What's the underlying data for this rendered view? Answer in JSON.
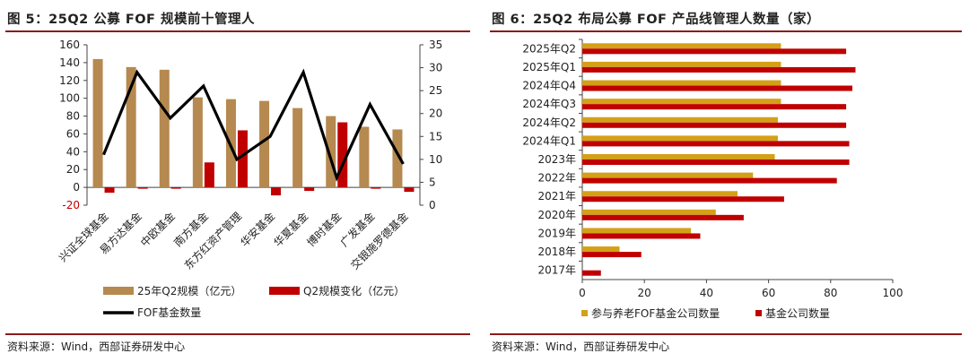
{
  "left_panel": {
    "title": "图 5：25Q2 公募 FOF 规模前十管理人",
    "source": "资料来源：Wind，西部证券研发中心"
  },
  "right_panel": {
    "title": "图 6：25Q2 布局公募 FOF 产品线管理人数量（家）",
    "source": "资料来源：Wind，西部证券研发中心"
  },
  "chart_data": [
    {
      "type": "bar",
      "categories": [
        "兴证全球基金",
        "易方达基金",
        "中欧基金",
        "南方基金",
        "东方红资产管理",
        "华安基金",
        "华夏基金",
        "博时基金",
        "广发基金",
        "交银施罗德基金"
      ],
      "series": [
        {
          "name": "25年Q2规模（亿元）",
          "axis": "left",
          "type": "bar",
          "color": "#b5894f",
          "values": [
            144,
            135,
            132,
            101,
            99,
            97,
            89,
            80,
            68,
            65
          ]
        },
        {
          "name": "Q2规模变化（亿元）",
          "axis": "left",
          "type": "bar",
          "color": "#c00000",
          "values": [
            -6,
            0,
            -1,
            28,
            64,
            -9,
            -4,
            73,
            0,
            -5
          ]
        },
        {
          "name": "FOF基金数量",
          "axis": "right",
          "type": "line",
          "color": "#000000",
          "values": [
            11,
            29,
            19,
            26,
            10,
            15,
            29,
            6,
            22,
            9
          ]
        }
      ],
      "y_left_ticks": [
        "-20",
        "0",
        "20",
        "40",
        "60",
        "80",
        "100",
        "120",
        "140",
        "160"
      ],
      "y_right_ticks": [
        "0",
        "5",
        "10",
        "15",
        "20",
        "25",
        "30",
        "35"
      ],
      "ylim_left": [
        -20,
        160
      ],
      "ylim_right": [
        0,
        35
      ],
      "legend": [
        "25年Q2规模（亿元）",
        "Q2规模变化（亿元）",
        "FOF基金数量"
      ]
    },
    {
      "type": "bar",
      "orientation": "horizontal",
      "categories": [
        "2025年Q2",
        "2025年Q1",
        "2024年Q4",
        "2024年Q3",
        "2024年Q2",
        "2024年Q1",
        "2023年",
        "2022年",
        "2021年",
        "2020年",
        "2019年",
        "2018年",
        "2017年"
      ],
      "series": [
        {
          "name": "参与养老FOF基金公司数量",
          "color": "#d4a017",
          "values": [
            64,
            64,
            64,
            64,
            63,
            63,
            62,
            55,
            50,
            43,
            35,
            12,
            0
          ]
        },
        {
          "name": "基金公司数量",
          "color": "#c00000",
          "values": [
            85,
            88,
            87,
            85,
            85,
            86,
            86,
            82,
            65,
            52,
            38,
            19,
            6
          ]
        }
      ],
      "x_ticks": [
        "0",
        "20",
        "40",
        "60",
        "80",
        "100"
      ],
      "xlim": [
        0,
        100
      ],
      "legend": [
        "参与养老FOF基金公司数量",
        "基金公司数量"
      ]
    }
  ]
}
